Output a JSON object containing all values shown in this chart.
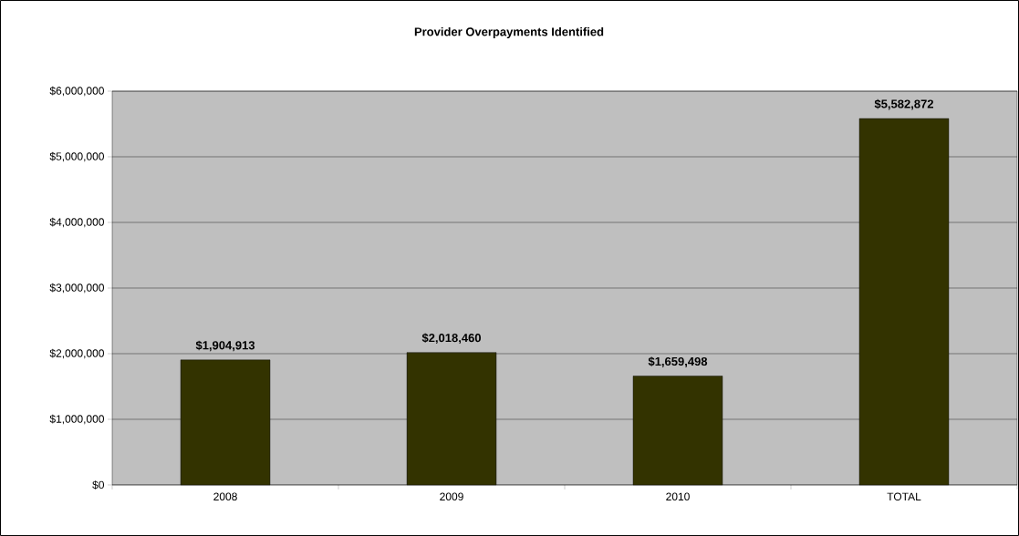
{
  "chart_data": {
    "type": "bar",
    "title": "Provider Overpayments Identified",
    "categories": [
      "2008",
      "2009",
      "2010",
      "TOTAL"
    ],
    "values": [
      1904913,
      2018460,
      1659498,
      5582872
    ],
    "value_labels": [
      "$1,904,913",
      "$2,018,460",
      "$1,659,498",
      "$5,582,872"
    ],
    "color": "#333300",
    "ylim": [
      0,
      6000000
    ],
    "yticks": [
      {
        "value": 0,
        "label": "$0"
      },
      {
        "value": 1000000,
        "label": "$1,000,000"
      },
      {
        "value": 2000000,
        "label": "$2,000,000"
      },
      {
        "value": 3000000,
        "label": "$3,000,000"
      },
      {
        "value": 4000000,
        "label": "$4,000,000"
      },
      {
        "value": 5000000,
        "label": "$5,000,000"
      },
      {
        "value": 6000000,
        "label": "$6,000,000"
      }
    ],
    "grid": "y"
  }
}
